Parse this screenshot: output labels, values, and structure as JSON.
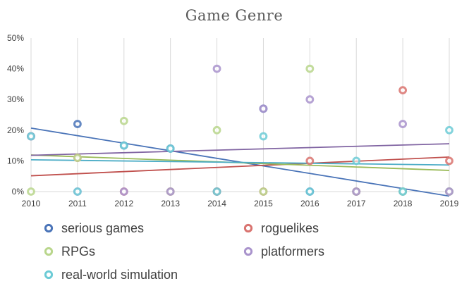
{
  "chart_data": {
    "type": "scatter",
    "title": "Game Genre",
    "x": [
      2010,
      2011,
      2012,
      2013,
      2014,
      2015,
      2016,
      2017,
      2018,
      2019
    ],
    "x_tick_labels": [
      "2010",
      "2011",
      "2012",
      "2013",
      "2014",
      "2015",
      "2016",
      "2017",
      "2018",
      "2019"
    ],
    "y_tick_labels": [
      "0%",
      "10%",
      "20%",
      "30%",
      "40%",
      "50%"
    ],
    "ylim": [
      0,
      50
    ],
    "y_unit": "%",
    "grid": "vertical",
    "trendlines": "linear",
    "legend_position": "bottom",
    "series": [
      {
        "name": "serious games",
        "color": "#4a74b8",
        "values": [
          18,
          22,
          15,
          14,
          0,
          27,
          0,
          0,
          0,
          0
        ]
      },
      {
        "name": "roguelikes",
        "color": "#d9736f",
        "values": [
          18,
          11,
          0,
          0,
          0,
          0,
          10,
          0,
          33,
          10
        ]
      },
      {
        "name": "RPGs",
        "color": "#b9d68c",
        "values": [
          0,
          11,
          23,
          0,
          20,
          0,
          40,
          0,
          0,
          0
        ]
      },
      {
        "name": "platformers",
        "color": "#a993cc",
        "values": [
          18,
          0,
          0,
          0,
          40,
          27,
          30,
          0,
          22,
          0
        ]
      },
      {
        "name": "real-world simulation",
        "color": "#6ccbd6",
        "values": [
          18,
          0,
          15,
          14,
          0,
          18,
          0,
          10,
          0,
          20
        ]
      }
    ],
    "trendline_colors": [
      "#4a74b8",
      "#c0504d",
      "#9bbb59",
      "#8064a2",
      "#4bacc6"
    ]
  }
}
